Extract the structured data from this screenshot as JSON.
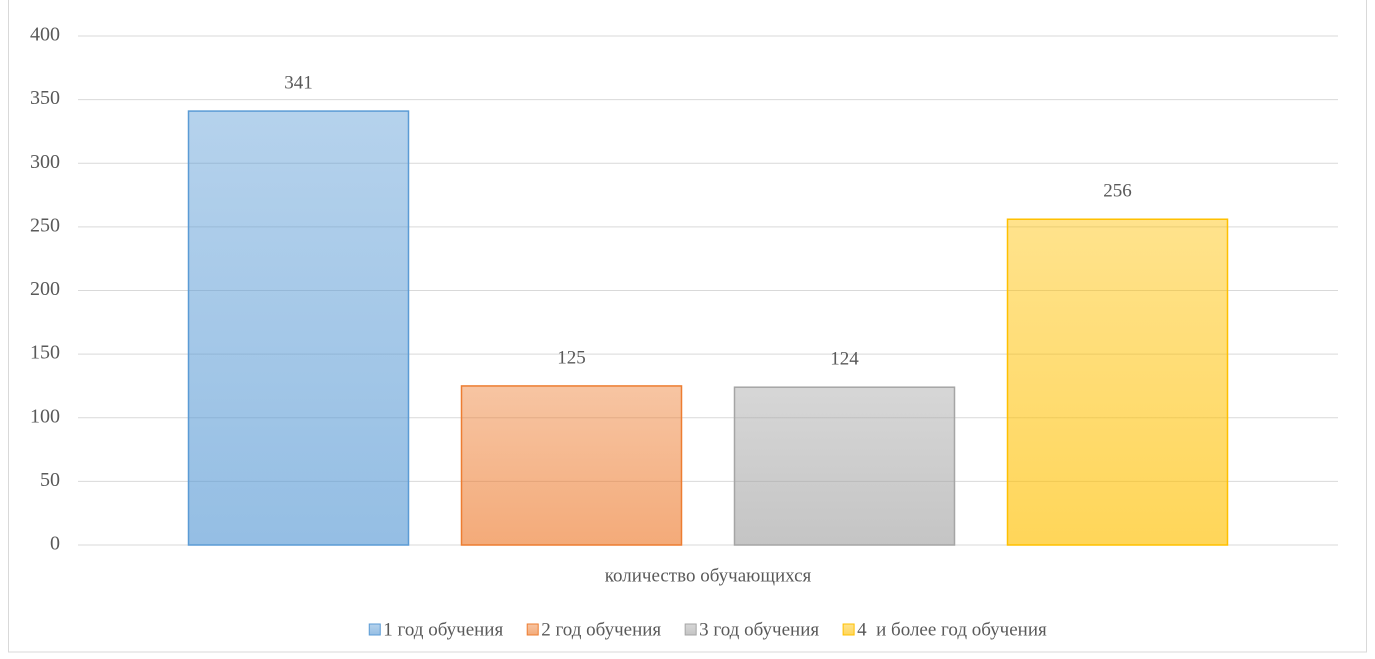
{
  "chart_data": {
    "type": "bar",
    "categories": [
      "количество обучающихся"
    ],
    "series": [
      {
        "name": "1 год обучения",
        "color": "#5b9bd5",
        "values": [
          341
        ]
      },
      {
        "name": "2 год обучения",
        "color": "#ed7d31",
        "values": [
          125
        ]
      },
      {
        "name": "3 год обучения",
        "color": "#a5a5a5",
        "values": [
          124
        ]
      },
      {
        "name": "4  и более год обучения",
        "color": "#ffc000",
        "values": [
          256
        ]
      }
    ],
    "ylim": [
      0,
      400
    ],
    "yticks": [
      0,
      50,
      100,
      150,
      200,
      250,
      300,
      350,
      400
    ],
    "grid": true,
    "legend": "bottom"
  }
}
